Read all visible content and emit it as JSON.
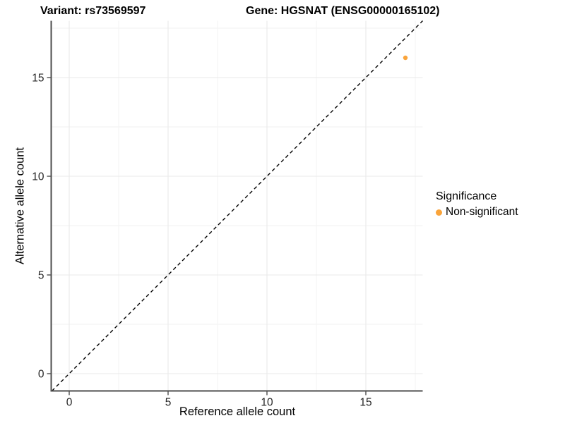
{
  "header": {
    "variant_title": "Variant: rs73569597",
    "gene_title": "Gene: HGSNAT (ENSG00000165102)"
  },
  "chart_data": {
    "type": "scatter",
    "xlabel": "Reference allele count",
    "ylabel": "Alternative allele count",
    "x_ticks": [
      0,
      5,
      10,
      15
    ],
    "y_ticks": [
      0,
      5,
      10,
      15
    ],
    "x_minor_ticks": [
      2.5,
      7.5,
      12.5,
      17.5
    ],
    "y_minor_ticks": [
      2.5,
      7.5,
      12.5,
      17.5
    ],
    "xlim": [
      -0.875,
      17.875
    ],
    "ylim": [
      -0.875,
      17.875
    ],
    "grid": true,
    "series": [
      {
        "name": "Non-significant",
        "color": "#FAA43A",
        "points": [
          {
            "x": 17,
            "y": 16
          }
        ]
      }
    ],
    "reference_line": {
      "type": "identity",
      "slope": 1,
      "intercept": 0,
      "style": "dashed",
      "color": "#000000"
    },
    "legend": {
      "title": "Significance",
      "position": "right",
      "items": [
        {
          "label": "Non-significant",
          "color": "#FAA43A"
        }
      ]
    }
  },
  "colors": {
    "background": "#ffffff",
    "grid_major": "#e9e9e9",
    "grid_minor": "#f2f2f2",
    "axis_line": "#4d4d4d",
    "tick_label": "#262626",
    "point": "#FAA43A"
  }
}
